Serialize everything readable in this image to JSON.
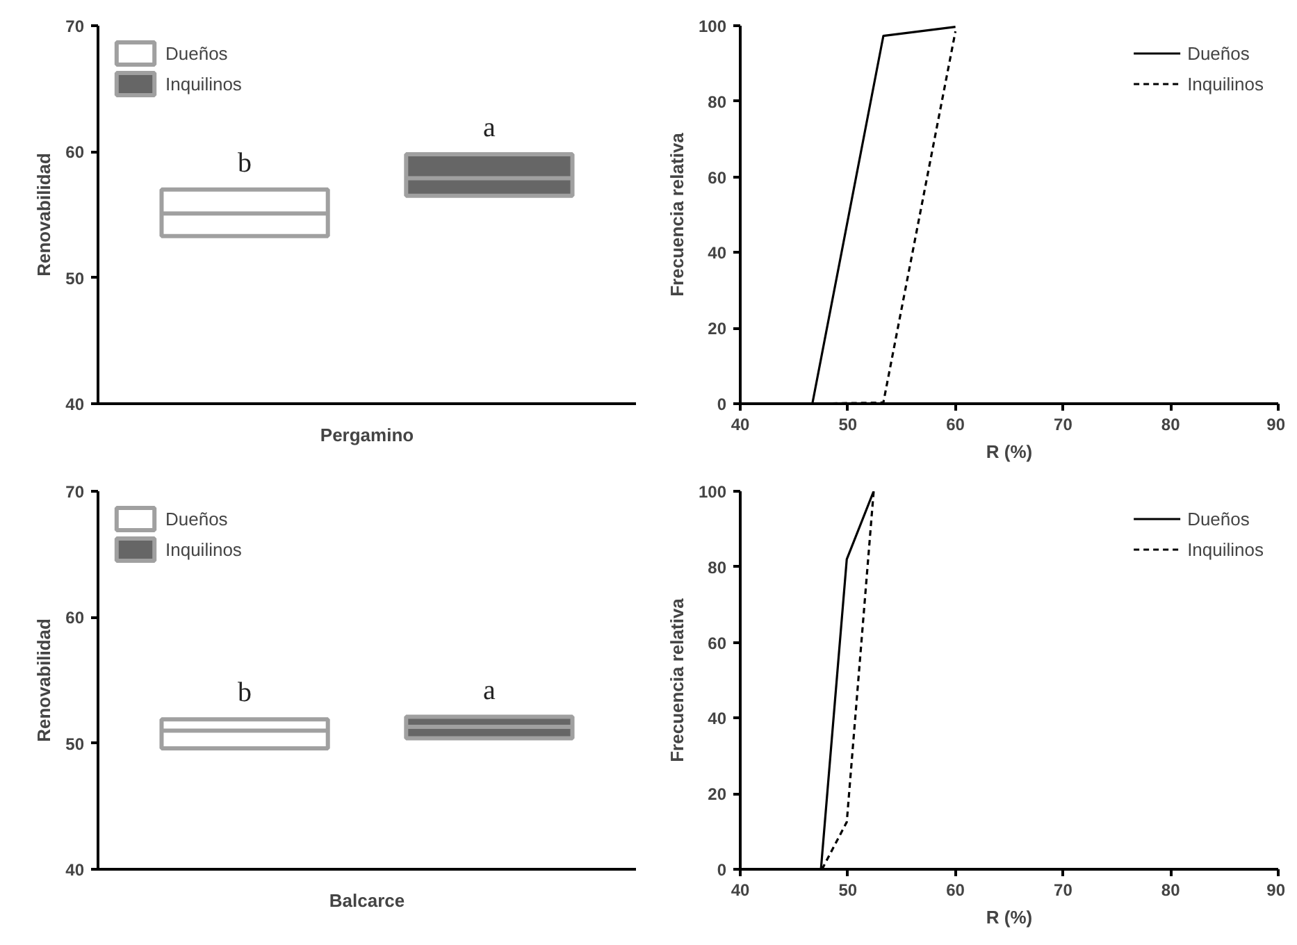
{
  "chart_data": [
    {
      "type": "box",
      "ylabel": "Renovabilidad",
      "xlabel": "Pergamino",
      "categories": [
        null,
        null
      ],
      "ylim": [
        40,
        70
      ],
      "yticks": [
        40,
        50,
        60,
        70
      ],
      "grid": false,
      "legend": "top left",
      "annotations": [
        "b",
        "a"
      ],
      "series": [
        {
          "name": "Dueños",
          "color": "#ffffff",
          "boxes": [
            {
              "low": 53.3,
              "q1": 53.3,
              "median": 55.1,
              "q3": 57.0,
              "high": 57.0
            },
            null
          ]
        },
        {
          "name": "Inquilinos",
          "color": "#666666",
          "boxes": [
            null,
            {
              "low": 56.5,
              "q1": 56.5,
              "median": 57.9,
              "q3": 59.8,
              "high": 59.8
            }
          ]
        }
      ]
    },
    {
      "type": "line",
      "xlabel": "R (%)",
      "ylabel": "Frecuencia relativa",
      "xlim": [
        40,
        90
      ],
      "xticks": [
        40,
        50,
        60,
        70,
        80,
        90
      ],
      "ylim": [
        0,
        100
      ],
      "yticks": [
        0,
        20,
        40,
        60,
        80,
        100
      ],
      "grid": false,
      "legend": "top right",
      "series": [
        {
          "name": "Dueños",
          "color": "#000000",
          "line_style": "solid",
          "x": [
            46.7,
            53.3,
            60.0
          ],
          "values": [
            0,
            97.3,
            99.7
          ]
        },
        {
          "name": "Inquilinos",
          "color": "#000000",
          "line_style": "dashed",
          "x": [
            46.7,
            53.3,
            60.0
          ],
          "values": [
            0,
            0.3,
            98.5
          ]
        }
      ]
    },
    {
      "type": "box",
      "ylabel": "Renovabilidad",
      "xlabel": "Balcarce",
      "categories": [
        null,
        null
      ],
      "ylim": [
        40,
        70
      ],
      "yticks": [
        40,
        50,
        60,
        70
      ],
      "grid": false,
      "legend": "top left",
      "annotations": [
        "b",
        "a"
      ],
      "series": [
        {
          "name": "Dueños",
          "color": "#ffffff",
          "boxes": [
            {
              "low": 49.6,
              "q1": 49.6,
              "median": 51.0,
              "q3": 51.9,
              "high": 51.9
            },
            null
          ]
        },
        {
          "name": "Inquilinos",
          "color": "#666666",
          "boxes": [
            null,
            {
              "low": 50.4,
              "q1": 50.4,
              "median": 51.3,
              "q3": 52.1,
              "high": 52.1
            }
          ]
        }
      ]
    },
    {
      "type": "line",
      "xlabel": "R (%)",
      "ylabel": "Frecuencia relativa",
      "xlim": [
        40,
        90
      ],
      "xticks": [
        40,
        50,
        60,
        70,
        80,
        90
      ],
      "ylim": [
        0,
        100
      ],
      "yticks": [
        0,
        20,
        40,
        60,
        80,
        100
      ],
      "grid": false,
      "legend": "top right",
      "series": [
        {
          "name": "Dueños",
          "color": "#000000",
          "line_style": "solid",
          "x": [
            47.5,
            49.9,
            52.4
          ],
          "values": [
            0,
            82,
            100
          ]
        },
        {
          "name": "Inquilinos",
          "color": "#000000",
          "line_style": "dashed",
          "x": [
            47.6,
            49.9,
            52.4
          ],
          "values": [
            0,
            12.5,
            100
          ]
        }
      ]
    }
  ]
}
